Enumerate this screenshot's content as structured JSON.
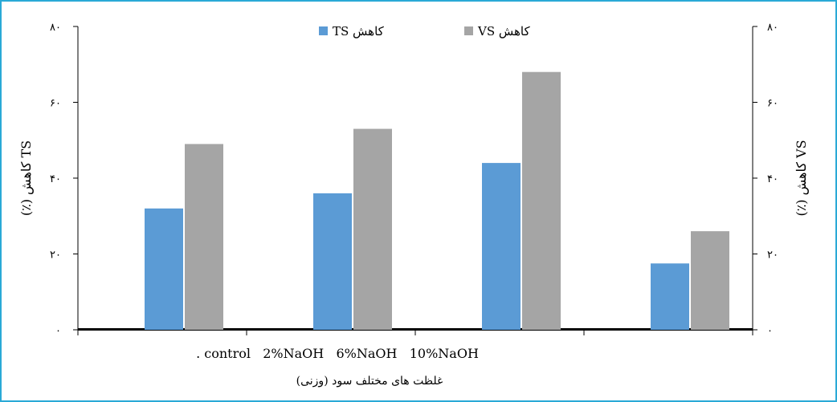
{
  "colors": {
    "frame": "#2aa9d6",
    "ts_bar": "#5b9bd5",
    "vs_bar": "#a5a5a5",
    "axis": "#000000"
  },
  "chart_data": {
    "type": "bar",
    "categories": [
      ". control",
      "2%NaOH",
      "6%NaOH",
      "10%NaOH"
    ],
    "category_label_line": ". control   2%NaOH   6%NaOH   10%NaOH",
    "series": [
      {
        "name": "کاهش TS",
        "values": [
          32,
          36,
          44,
          17.5
        ]
      },
      {
        "name": "کاهش VS",
        "values": [
          49,
          53,
          68,
          26
        ]
      }
    ],
    "xlabel": "غلظت های مختلف سود (وزنی)",
    "ylabel_left": "(٪) کاهش TS",
    "ylabel_right": "(٪) کاهش VS",
    "ylim": [
      0,
      80
    ],
    "y_ticks": [
      0,
      20,
      40,
      60,
      80
    ],
    "y_tick_labels": [
      "۰",
      "۲۰",
      "۴۰",
      "۶۰",
      "۸۰"
    ],
    "legend": [
      {
        "label": "کاهش TS",
        "color": "#5b9bd5"
      },
      {
        "label": "کاهش VS",
        "color": "#a5a5a5"
      }
    ],
    "legend_position": "top-center",
    "grid": false
  }
}
